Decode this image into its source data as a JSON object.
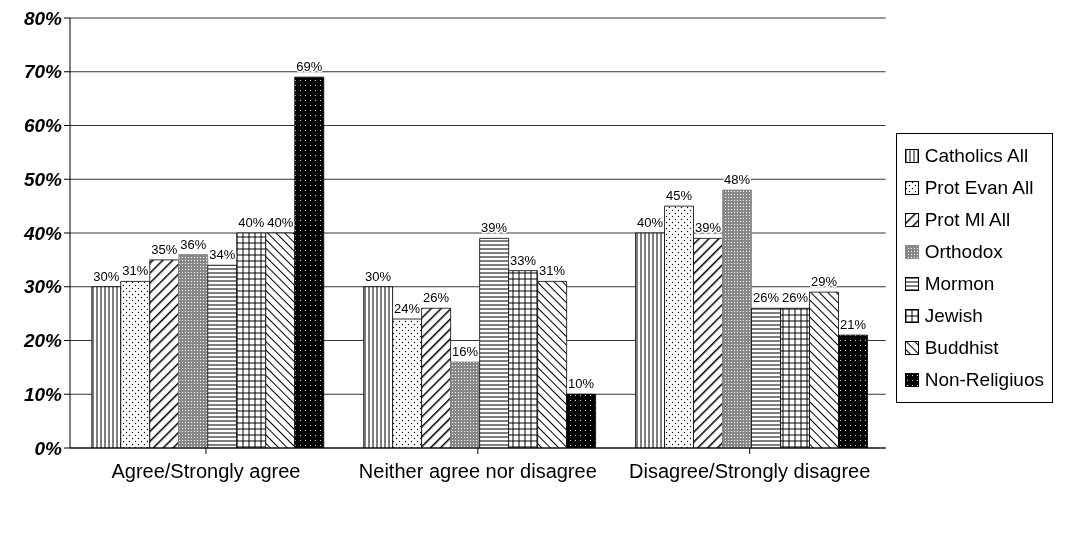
{
  "chart_data": {
    "type": "bar",
    "categories": [
      "Agree/Strongly agree",
      "Neither agree nor disagree",
      "Disagree/Strongly disagree"
    ],
    "series": [
      {
        "name": "Catholics All",
        "color": "#000000",
        "values": [
          30,
          30,
          40
        ],
        "value_labels": [
          "30%",
          "30%",
          "40%"
        ]
      },
      {
        "name": "Prot Evan All",
        "color": "#000000",
        "values": [
          31,
          24,
          45
        ],
        "value_labels": [
          "31%",
          "24%",
          "45%"
        ]
      },
      {
        "name": "Prot Ml All",
        "color": "#000000",
        "values": [
          35,
          26,
          39
        ],
        "value_labels": [
          "35%",
          "26%",
          "39%"
        ]
      },
      {
        "name": "Orthodox",
        "color": "#888888",
        "values": [
          36,
          16,
          48
        ],
        "value_labels": [
          "36%",
          "16%",
          "48%"
        ]
      },
      {
        "name": "Mormon",
        "color": "#000000",
        "values": [
          34,
          39,
          26
        ],
        "value_labels": [
          "34%",
          "39%",
          "26%"
        ]
      },
      {
        "name": "Jewish",
        "color": "#000000",
        "values": [
          40,
          33,
          26
        ],
        "value_labels": [
          "40%",
          "33%",
          "26%"
        ]
      },
      {
        "name": "Buddhist",
        "color": "#000000",
        "values": [
          40,
          31,
          29
        ],
        "value_labels": [
          "40%",
          "31%",
          "29%"
        ]
      },
      {
        "name": "Non-Religiuos",
        "color": "#000000",
        "values": [
          69,
          10,
          21
        ],
        "value_labels": [
          "69%",
          "10%",
          "21%"
        ]
      }
    ],
    "ylim": [
      0,
      80
    ],
    "yticks": [
      {
        "value": 0,
        "label": "0%"
      },
      {
        "value": 10,
        "label": "10%"
      },
      {
        "value": 20,
        "label": "20%"
      },
      {
        "value": 30,
        "label": "30%"
      },
      {
        "value": 40,
        "label": "40%"
      },
      {
        "value": 50,
        "label": "50%"
      },
      {
        "value": 60,
        "label": "60%"
      },
      {
        "value": 70,
        "label": "70%"
      },
      {
        "value": 80,
        "label": "80%"
      }
    ],
    "grid": "y",
    "legend": "right"
  }
}
